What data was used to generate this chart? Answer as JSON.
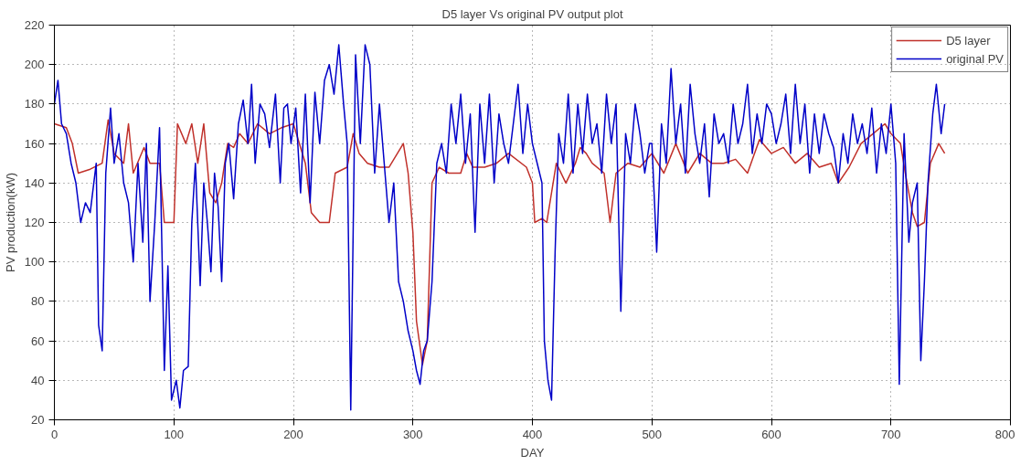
{
  "chart_data": {
    "type": "line",
    "title": "D5 layer Vs original PV output plot",
    "xlabel": "DAY",
    "ylabel": "PV production(kW)",
    "xlim": [
      0,
      800
    ],
    "xticks": [
      0,
      100,
      200,
      300,
      400,
      500,
      600,
      700,
      800
    ],
    "ylim": [
      20,
      220
    ],
    "yticks": [
      20,
      40,
      60,
      80,
      100,
      120,
      140,
      160,
      180,
      200,
      220
    ],
    "grid": true,
    "legend": "top right",
    "marker": "none",
    "line_style": "solid",
    "series": [
      {
        "name": "D5 layer",
        "color": "#c0302a",
        "x": [
          0,
          10,
          15,
          20,
          30,
          40,
          45,
          50,
          58,
          62,
          66,
          75,
          80,
          88,
          92,
          100,
          103,
          110,
          115,
          120,
          125,
          130,
          135,
          140,
          145,
          150,
          155,
          162,
          170,
          180,
          190,
          200,
          210,
          215,
          222,
          230,
          235,
          245,
          250,
          255,
          262,
          272,
          280,
          292,
          296,
          300,
          303,
          308,
          312,
          316,
          322,
          330,
          340,
          345,
          350,
          360,
          370,
          380,
          395,
          400,
          402,
          408,
          412,
          420,
          428,
          436,
          440,
          445,
          450,
          460,
          465,
          470,
          480,
          490,
          500,
          510,
          520,
          530,
          540,
          550,
          560,
          570,
          580,
          590,
          600,
          610,
          620,
          630,
          640,
          650,
          656,
          665,
          675,
          685,
          695,
          700,
          708,
          712,
          718,
          722,
          728,
          733,
          740,
          745
        ],
        "values": [
          170,
          168,
          160,
          145,
          147,
          150,
          172,
          155,
          150,
          170,
          145,
          158,
          150,
          150,
          120,
          120,
          170,
          160,
          170,
          150,
          170,
          135,
          130,
          140,
          160,
          158,
          165,
          160,
          170,
          165,
          168,
          170,
          150,
          125,
          120,
          120,
          145,
          148,
          165,
          155,
          150,
          148,
          148,
          160,
          145,
          115,
          70,
          48,
          60,
          140,
          148,
          145,
          145,
          155,
          148,
          148,
          150,
          155,
          148,
          140,
          120,
          122,
          120,
          150,
          140,
          150,
          158,
          155,
          150,
          145,
          120,
          145,
          150,
          148,
          155,
          145,
          160,
          145,
          155,
          150,
          150,
          152,
          145,
          162,
          155,
          158,
          150,
          155,
          148,
          150,
          140,
          148,
          160,
          165,
          170,
          165,
          160,
          145,
          125,
          118,
          120,
          150,
          160,
          155
        ]
      },
      {
        "name": "original PV",
        "color": "#0000c8",
        "x": [
          0,
          3,
          6,
          10,
          14,
          18,
          22,
          26,
          30,
          35,
          37,
          40,
          43,
          47,
          50,
          54,
          58,
          62,
          66,
          70,
          74,
          77,
          80,
          84,
          88,
          92,
          95,
          98,
          102,
          105,
          108,
          112,
          115,
          118,
          122,
          125,
          128,
          131,
          134,
          137,
          140,
          143,
          146,
          150,
          154,
          158,
          162,
          165,
          168,
          172,
          176,
          180,
          185,
          189,
          192,
          195,
          198,
          202,
          206,
          210,
          214,
          218,
          222,
          226,
          230,
          234,
          238,
          242,
          245,
          248,
          252,
          256,
          260,
          264,
          268,
          272,
          276,
          280,
          284,
          288,
          292,
          296,
          300,
          303,
          306,
          309,
          312,
          316,
          320,
          324,
          328,
          332,
          336,
          340,
          344,
          348,
          352,
          356,
          360,
          364,
          368,
          372,
          376,
          380,
          384,
          388,
          392,
          396,
          400,
          404,
          408,
          410,
          413,
          416,
          419,
          422,
          426,
          430,
          434,
          438,
          442,
          446,
          450,
          454,
          458,
          462,
          466,
          470,
          474,
          478,
          482,
          486,
          490,
          494,
          498,
          500,
          504,
          508,
          512,
          516,
          520,
          524,
          528,
          532,
          536,
          540,
          544,
          548,
          552,
          556,
          560,
          564,
          568,
          572,
          576,
          580,
          584,
          588,
          592,
          596,
          600,
          604,
          608,
          612,
          616,
          620,
          624,
          628,
          632,
          636,
          640,
          644,
          648,
          652,
          656,
          660,
          664,
          668,
          672,
          676,
          680,
          684,
          688,
          692,
          696,
          700,
          704,
          707,
          711,
          715,
          718,
          722,
          725,
          728,
          731,
          735,
          738,
          742,
          745
        ],
        "values": [
          180,
          192,
          170,
          165,
          150,
          140,
          120,
          130,
          125,
          150,
          68,
          55,
          145,
          178,
          150,
          165,
          140,
          130,
          100,
          150,
          110,
          160,
          80,
          120,
          168,
          45,
          98,
          30,
          40,
          26,
          45,
          47,
          120,
          150,
          88,
          140,
          120,
          95,
          145,
          128,
          90,
          150,
          160,
          132,
          170,
          182,
          160,
          190,
          150,
          180,
          175,
          158,
          185,
          140,
          178,
          180,
          160,
          178,
          135,
          185,
          130,
          186,
          160,
          192,
          200,
          185,
          210,
          180,
          160,
          25,
          205,
          160,
          210,
          200,
          145,
          180,
          150,
          120,
          140,
          90,
          80,
          65,
          55,
          45,
          38,
          55,
          60,
          90,
          150,
          160,
          145,
          180,
          160,
          185,
          150,
          175,
          115,
          180,
          150,
          185,
          140,
          175,
          160,
          150,
          170,
          190,
          155,
          180,
          160,
          150,
          140,
          60,
          40,
          30,
          105,
          165,
          150,
          185,
          145,
          180,
          155,
          185,
          160,
          170,
          145,
          185,
          160,
          180,
          75,
          165,
          150,
          180,
          165,
          145,
          160,
          160,
          105,
          170,
          150,
          198,
          160,
          180,
          145,
          190,
          165,
          150,
          170,
          133,
          175,
          160,
          165,
          150,
          180,
          160,
          170,
          190,
          155,
          175,
          160,
          180,
          175,
          160,
          170,
          185,
          155,
          190,
          160,
          180,
          145,
          175,
          155,
          175,
          165,
          158,
          140,
          165,
          150,
          175,
          160,
          170,
          155,
          178,
          145,
          170,
          155,
          180,
          150,
          38,
          165,
          110,
          130,
          140,
          50,
          90,
          140,
          175,
          190,
          165,
          180
        ]
      }
    ]
  }
}
